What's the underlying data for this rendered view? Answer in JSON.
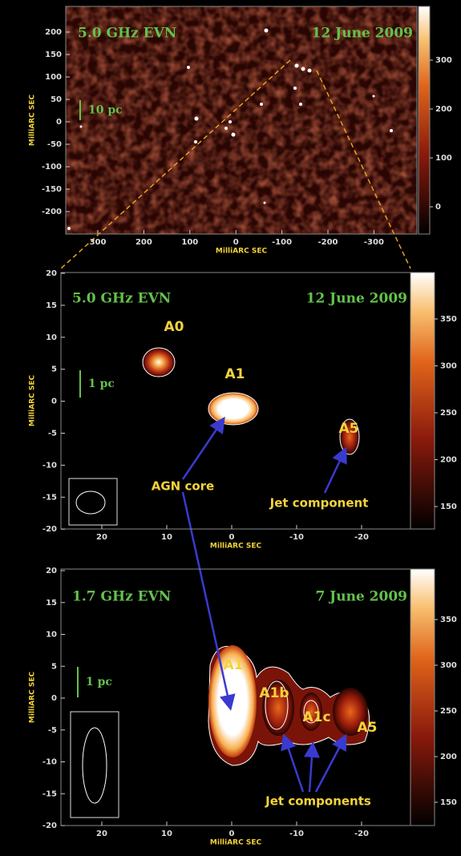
{
  "panels": [
    {
      "title_left": "5.0 GHz EVN",
      "title_right": "12 June 2009",
      "scale_bar": "10 pc",
      "y_axis_label": "MilliARC SEC",
      "x_axis_label": "MilliARC SEC",
      "yticks": [
        200,
        150,
        100,
        50,
        0,
        -50,
        -100,
        -150,
        -200
      ],
      "xticks": [
        300,
        200,
        100,
        0,
        -100,
        -200,
        -300
      ],
      "colorbar_ticks": [
        300,
        200,
        100,
        0
      ]
    },
    {
      "title_left": "5.0 GHz EVN",
      "title_right": "12 June 2009",
      "scale_bar": "1 pc",
      "y_axis_label": "MilliARC SEC",
      "x_axis_label": "MilliARC SEC",
      "yticks": [
        20,
        15,
        10,
        5,
        0,
        -5,
        -10,
        -15,
        -20
      ],
      "xticks": [
        20,
        10,
        0,
        -10,
        -20
      ],
      "colorbar_ticks": [
        350,
        300,
        250,
        200,
        150
      ],
      "sources": [
        "A0",
        "A1",
        "A5"
      ],
      "annotations": [
        "AGN core",
        "Jet component"
      ]
    },
    {
      "title_left": "1.7 GHz EVN",
      "title_right": "7 June 2009",
      "scale_bar": "1 pc",
      "y_axis_label": "MilliARC SEC",
      "x_axis_label": "MilliARC SEC",
      "yticks": [
        20,
        15,
        10,
        5,
        0,
        -5,
        -10,
        -15,
        -20
      ],
      "xticks": [
        20,
        10,
        0,
        -10,
        -20
      ],
      "colorbar_ticks": [
        350,
        300,
        250,
        200,
        150
      ],
      "sources": [
        "A1",
        "A1b",
        "A1c",
        "A5"
      ],
      "annotations": [
        "Jet components"
      ]
    }
  ]
}
